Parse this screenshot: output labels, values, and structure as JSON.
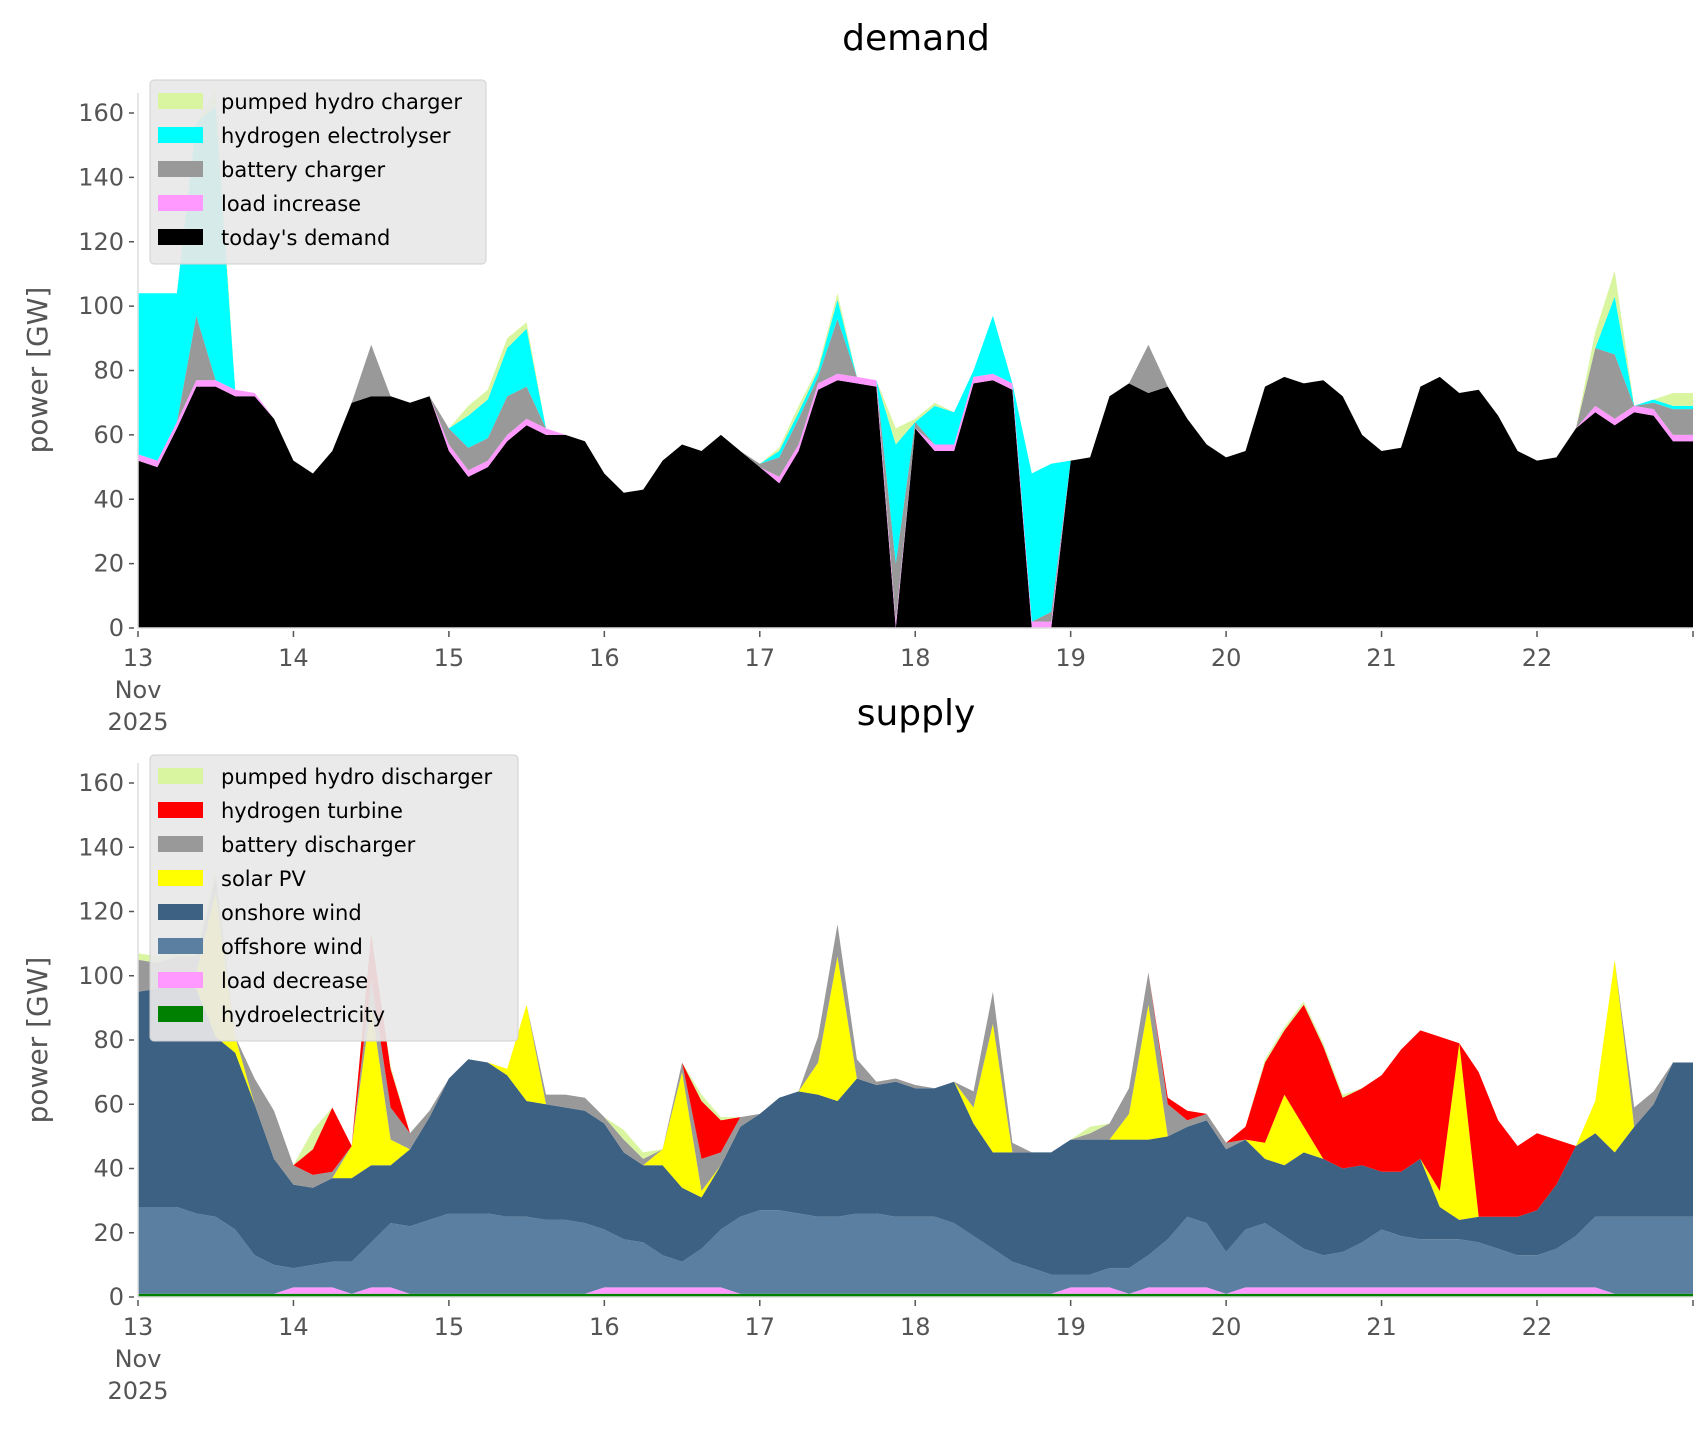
{
  "chart_data": [
    {
      "type": "area",
      "stacked": true,
      "title": "demand",
      "xlabel": "",
      "ylabel": "power [GW]",
      "ylim": [
        0,
        170
      ],
      "yticks": [
        0,
        20,
        40,
        60,
        80,
        100,
        120,
        140,
        160
      ],
      "xlim": [
        "2025-11-13",
        "2025-11-22 23:00"
      ],
      "xtick_labels": [
        "13\nNov\n2025",
        "14",
        "15",
        "16",
        "17",
        "18",
        "19",
        "20",
        "21",
        "22"
      ],
      "x_step_hours": 3,
      "legend_position": "top-left",
      "grid": false,
      "series": [
        {
          "name": "today's demand",
          "color": "#000000",
          "values": [
            52,
            50,
            62,
            75,
            75,
            72,
            72,
            65,
            52,
            48,
            55,
            70,
            72,
            72,
            70,
            72,
            55,
            47,
            50,
            58,
            63,
            60,
            60,
            58,
            48,
            42,
            43,
            52,
            57,
            55,
            60,
            55,
            50,
            45,
            55,
            74,
            77,
            76,
            75,
            0,
            62,
            55,
            55,
            76,
            77,
            74,
            0,
            0,
            52,
            53,
            72,
            76,
            73,
            75,
            65,
            57,
            53,
            55,
            75,
            78,
            76,
            77,
            72,
            60,
            55,
            56,
            75,
            78,
            73,
            74,
            66,
            55,
            52,
            53,
            62,
            67,
            63,
            67,
            66,
            58
          ]
        },
        {
          "name": "load increase",
          "color": "#ff99ff",
          "values": [
            2,
            2,
            2,
            2,
            2,
            2,
            1,
            0,
            0,
            0,
            0,
            0,
            0,
            0,
            0,
            0,
            2,
            2,
            2,
            2,
            2,
            2,
            0,
            0,
            0,
            0,
            0,
            0,
            0,
            0,
            0,
            0,
            0,
            2,
            2,
            2,
            2,
            2,
            2,
            2,
            0,
            2,
            2,
            2,
            2,
            2,
            2,
            2,
            0,
            0,
            0,
            0,
            0,
            0,
            0,
            0,
            0,
            0,
            0,
            0,
            0,
            0,
            0,
            0,
            0,
            0,
            0,
            0,
            0,
            0,
            0,
            0,
            0,
            0,
            0,
            2,
            2,
            2,
            2,
            2
          ]
        },
        {
          "name": "battery charger",
          "color": "#999999",
          "values": [
            0,
            0,
            0,
            20,
            0,
            0,
            0,
            0,
            0,
            0,
            0,
            0,
            16,
            0,
            0,
            0,
            5,
            7,
            7,
            12,
            10,
            0,
            0,
            0,
            0,
            0,
            0,
            0,
            0,
            0,
            0,
            0,
            1,
            6,
            8,
            2,
            17,
            0,
            0,
            18,
            2,
            0,
            0,
            0,
            0,
            0,
            0,
            3,
            0,
            0,
            0,
            0,
            15,
            0,
            0,
            0,
            0,
            0,
            0,
            0,
            0,
            0,
            0,
            0,
            0,
            0,
            0,
            0,
            0,
            0,
            0,
            0,
            0,
            0,
            0,
            18,
            20,
            0,
            2,
            8
          ]
        },
        {
          "name": "hydrogen electrolyser",
          "color": "#00ffff",
          "values": [
            50,
            52,
            40,
            60,
            85,
            0,
            0,
            0,
            0,
            0,
            0,
            0,
            0,
            0,
            0,
            0,
            0,
            10,
            12,
            15,
            18,
            0,
            0,
            0,
            0,
            0,
            0,
            0,
            0,
            0,
            0,
            0,
            0,
            2,
            2,
            2,
            6,
            0,
            0,
            37,
            0,
            12,
            10,
            2,
            18,
            0,
            46,
            46,
            0,
            0,
            0,
            0,
            0,
            0,
            0,
            0,
            0,
            0,
            0,
            0,
            0,
            0,
            0,
            0,
            0,
            0,
            0,
            0,
            0,
            0,
            0,
            0,
            0,
            0,
            0,
            0,
            18,
            0,
            1,
            1
          ]
        },
        {
          "name": "pumped hydro charger",
          "color": "#d9f5a0",
          "values": [
            0,
            0,
            0,
            0,
            5,
            0,
            0,
            0,
            0,
            0,
            0,
            0,
            0,
            0,
            0,
            0,
            0,
            3,
            3,
            3,
            2,
            0,
            0,
            0,
            0,
            0,
            0,
            0,
            0,
            0,
            0,
            0,
            0,
            1,
            2,
            1,
            2,
            0,
            0,
            5,
            1,
            1,
            0,
            0,
            0,
            0,
            0,
            0,
            0,
            0,
            0,
            0,
            0,
            0,
            0,
            0,
            0,
            0,
            0,
            0,
            0,
            0,
            0,
            0,
            0,
            0,
            0,
            0,
            0,
            0,
            0,
            0,
            0,
            0,
            0,
            5,
            8,
            0,
            0,
            4
          ]
        }
      ]
    },
    {
      "type": "area",
      "stacked": true,
      "title": "supply",
      "xlabel": "",
      "ylabel": "power [GW]",
      "ylim": [
        0,
        170
      ],
      "yticks": [
        0,
        20,
        40,
        60,
        80,
        100,
        120,
        140,
        160
      ],
      "xlim": [
        "2025-11-13",
        "2025-11-22 23:00"
      ],
      "xtick_labels": [
        "13\nNov\n2025",
        "14",
        "15",
        "16",
        "17",
        "18",
        "19",
        "20",
        "21",
        "22"
      ],
      "x_step_hours": 3,
      "legend_position": "top-left",
      "grid": false,
      "series": [
        {
          "name": "hydroelectricity",
          "color": "#008000",
          "values": [
            1,
            1,
            1,
            1,
            1,
            1,
            1,
            1,
            1,
            1,
            1,
            1,
            1,
            1,
            1,
            1,
            1,
            1,
            1,
            1,
            1,
            1,
            1,
            1,
            1,
            1,
            1,
            1,
            1,
            1,
            1,
            1,
            1,
            1,
            1,
            1,
            1,
            1,
            1,
            1,
            1,
            1,
            1,
            1,
            1,
            1,
            1,
            1,
            1,
            1,
            1,
            1,
            1,
            1,
            1,
            1,
            1,
            1,
            1,
            1,
            1,
            1,
            1,
            1,
            1,
            1,
            1,
            1,
            1,
            1,
            1,
            1,
            1,
            1,
            1,
            1,
            1,
            1,
            1,
            1
          ]
        },
        {
          "name": "load decrease",
          "color": "#ff99ff",
          "values": [
            0,
            0,
            0,
            0,
            0,
            0,
            0,
            0,
            2,
            2,
            2,
            0,
            2,
            2,
            0,
            0,
            0,
            0,
            0,
            0,
            0,
            0,
            0,
            0,
            2,
            2,
            2,
            2,
            2,
            2,
            2,
            0,
            0,
            0,
            0,
            0,
            0,
            0,
            0,
            0,
            0,
            0,
            0,
            0,
            0,
            0,
            0,
            0,
            2,
            2,
            2,
            0,
            2,
            2,
            2,
            2,
            0,
            2,
            2,
            2,
            2,
            2,
            2,
            2,
            2,
            2,
            2,
            2,
            2,
            2,
            2,
            2,
            2,
            2,
            2,
            2,
            0,
            0,
            0,
            0
          ]
        },
        {
          "name": "offshore wind",
          "color": "#5b7fa0",
          "values": [
            27,
            27,
            27,
            25,
            24,
            20,
            12,
            9,
            6,
            7,
            8,
            10,
            14,
            20,
            21,
            23,
            25,
            25,
            25,
            24,
            24,
            23,
            23,
            22,
            18,
            15,
            14,
            10,
            8,
            12,
            18,
            24,
            26,
            26,
            25,
            24,
            24,
            25,
            25,
            24,
            24,
            24,
            22,
            18,
            14,
            10,
            8,
            6,
            4,
            4,
            6,
            8,
            10,
            15,
            22,
            20,
            13,
            18,
            20,
            16,
            12,
            10,
            11,
            14,
            18,
            16,
            15,
            15,
            15,
            14,
            12,
            10,
            10,
            12,
            16,
            22,
            24,
            24,
            24,
            24
          ]
        },
        {
          "name": "onshore wind",
          "color": "#3d6182",
          "values": [
            67,
            68,
            70,
            70,
            56,
            55,
            47,
            33,
            26,
            24,
            26,
            26,
            24,
            18,
            24,
            32,
            42,
            48,
            47,
            44,
            36,
            36,
            35,
            35,
            33,
            27,
            24,
            28,
            23,
            16,
            20,
            28,
            30,
            35,
            38,
            38,
            36,
            42,
            40,
            42,
            40,
            40,
            44,
            35,
            30,
            34,
            36,
            38,
            42,
            42,
            40,
            40,
            36,
            32,
            28,
            32,
            32,
            28,
            20,
            22,
            30,
            30,
            26,
            24,
            18,
            20,
            25,
            10,
            6,
            8,
            10,
            12,
            14,
            20,
            28,
            26,
            20,
            28,
            35,
            48
          ]
        },
        {
          "name": "solar PV",
          "color": "#ffff00",
          "values": [
            0,
            0,
            0,
            5,
            45,
            5,
            0,
            0,
            0,
            0,
            0,
            10,
            50,
            8,
            0,
            0,
            0,
            0,
            0,
            2,
            30,
            0,
            0,
            0,
            0,
            0,
            0,
            5,
            36,
            2,
            0,
            0,
            0,
            0,
            0,
            10,
            45,
            0,
            0,
            0,
            0,
            0,
            0,
            5,
            40,
            0,
            0,
            0,
            0,
            0,
            0,
            8,
            42,
            0,
            0,
            0,
            0,
            0,
            5,
            22,
            8,
            0,
            0,
            0,
            0,
            0,
            0,
            5,
            55,
            0,
            0,
            0,
            0,
            0,
            0,
            10,
            60,
            0,
            0,
            0
          ]
        },
        {
          "name": "battery discharger",
          "color": "#999999",
          "values": [
            10,
            8,
            8,
            5,
            5,
            0,
            8,
            15,
            6,
            4,
            2,
            0,
            8,
            10,
            5,
            2,
            0,
            0,
            0,
            0,
            0,
            3,
            4,
            4,
            2,
            4,
            2,
            0,
            3,
            10,
            4,
            3,
            0,
            0,
            0,
            8,
            10,
            6,
            1,
            1,
            1,
            0,
            0,
            5,
            10,
            3,
            0,
            0,
            0,
            2,
            5,
            8,
            10,
            10,
            2,
            2,
            2,
            0,
            0,
            0,
            0,
            0,
            0,
            0,
            0,
            0,
            0,
            0,
            0,
            0,
            0,
            0,
            0,
            0,
            0,
            0,
            0,
            6,
            4,
            0
          ]
        },
        {
          "name": "hydrogen turbine",
          "color": "#ff0000",
          "values": [
            0,
            0,
            0,
            0,
            0,
            0,
            0,
            0,
            0,
            8,
            20,
            0,
            14,
            12,
            0,
            0,
            0,
            0,
            0,
            0,
            0,
            0,
            0,
            0,
            0,
            0,
            0,
            0,
            0,
            18,
            10,
            0,
            0,
            0,
            0,
            0,
            0,
            0,
            0,
            0,
            0,
            0,
            0,
            0,
            0,
            0,
            0,
            0,
            0,
            0,
            0,
            0,
            0,
            2,
            3,
            0,
            0,
            4,
            25,
            20,
            38,
            35,
            22,
            24,
            30,
            38,
            40,
            48,
            0,
            45,
            30,
            22,
            24,
            14,
            0,
            0,
            0,
            0,
            0,
            0
          ]
        },
        {
          "name": "pumped hydro discharger",
          "color": "#d9f5a0",
          "values": [
            2,
            2,
            2,
            2,
            2,
            0,
            0,
            0,
            0,
            6,
            0,
            0,
            0,
            1,
            0,
            0,
            0,
            0,
            0,
            0,
            0,
            0,
            0,
            0,
            0,
            3,
            2,
            0,
            0,
            2,
            1,
            0,
            0,
            0,
            0,
            0,
            0,
            0,
            0,
            0,
            0,
            0,
            0,
            0,
            0,
            0,
            0,
            0,
            0,
            2,
            0,
            0,
            0,
            0,
            0,
            0,
            0,
            0,
            1,
            1,
            1,
            1,
            1,
            0,
            0,
            0,
            0,
            0,
            0,
            0,
            0,
            0,
            0,
            0,
            0,
            0,
            0,
            0,
            0,
            0
          ]
        }
      ]
    }
  ]
}
